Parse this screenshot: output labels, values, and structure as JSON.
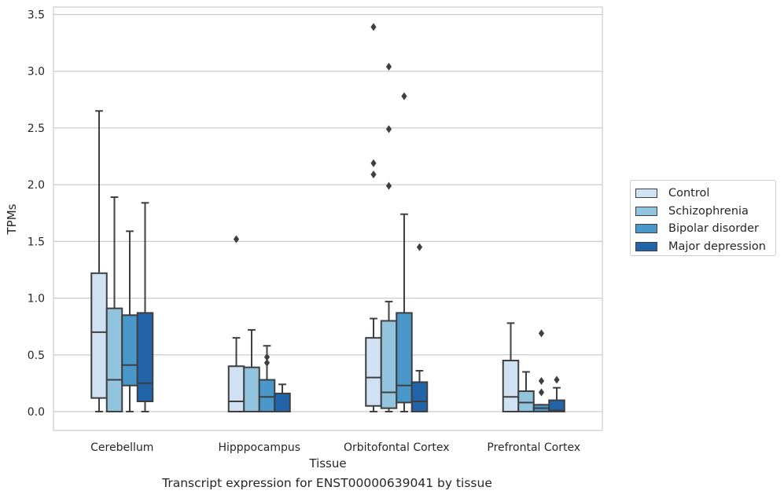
{
  "chart_data": {
    "type": "box",
    "title": "Transcript expression for ENST00000639041 by tissue",
    "xlabel": "Tissue",
    "ylabel": "TPMs",
    "ylim": [
      -0.17,
      3.57
    ],
    "yticks": [
      0.0,
      0.5,
      1.0,
      1.5,
      2.0,
      2.5,
      3.0,
      3.5
    ],
    "ytick_labels": [
      "0.0",
      "0.5",
      "1.0",
      "1.5",
      "2.0",
      "2.5",
      "3.0",
      "3.5"
    ],
    "grid": "horizontal",
    "legend_position": "right",
    "categories": [
      "Cerebellum",
      "Hipppocampus",
      "Orbitofontal Cortex",
      "Prefrontal Cortex"
    ],
    "series": [
      {
        "name": "Control",
        "color": "#cfe1f2",
        "boxes": [
          {
            "whislo": 0.0,
            "q1": 0.12,
            "med": 0.7,
            "q3": 1.22,
            "whishi": 2.65,
            "fliers": []
          },
          {
            "whislo": 0.0,
            "q1": 0.0,
            "med": 0.09,
            "q3": 0.4,
            "whishi": 0.65,
            "fliers": [
              1.52
            ]
          },
          {
            "whislo": 0.0,
            "q1": 0.05,
            "med": 0.3,
            "q3": 0.65,
            "whishi": 0.82,
            "fliers": [
              2.09,
              2.19,
              3.39
            ]
          },
          {
            "whislo": 0.0,
            "q1": 0.0,
            "med": 0.13,
            "q3": 0.45,
            "whishi": 0.78,
            "fliers": []
          }
        ]
      },
      {
        "name": "Schizophrenia",
        "color": "#93c4de",
        "boxes": [
          {
            "whislo": 0.0,
            "q1": 0.0,
            "med": 0.28,
            "q3": 0.91,
            "whishi": 1.89,
            "fliers": []
          },
          {
            "whislo": 0.0,
            "q1": 0.0,
            "med": 0.0,
            "q3": 0.39,
            "whishi": 0.72,
            "fliers": []
          },
          {
            "whislo": 0.0,
            "q1": 0.03,
            "med": 0.17,
            "q3": 0.8,
            "whishi": 0.97,
            "fliers": [
              1.99,
              2.49,
              3.04
            ]
          },
          {
            "whislo": 0.0,
            "q1": 0.0,
            "med": 0.08,
            "q3": 0.18,
            "whishi": 0.35,
            "fliers": []
          }
        ]
      },
      {
        "name": "Bipolar disorder",
        "color": "#4a98c9",
        "boxes": [
          {
            "whislo": 0.0,
            "q1": 0.23,
            "med": 0.41,
            "q3": 0.85,
            "whishi": 1.59,
            "fliers": []
          },
          {
            "whislo": 0.0,
            "q1": 0.0,
            "med": 0.13,
            "q3": 0.28,
            "whishi": 0.58,
            "fliers": [
              0.43,
              0.48
            ]
          },
          {
            "whislo": 0.0,
            "q1": 0.08,
            "med": 0.23,
            "q3": 0.87,
            "whishi": 1.74,
            "fliers": [
              2.78
            ]
          },
          {
            "whislo": 0.0,
            "q1": 0.0,
            "med": 0.03,
            "q3": 0.06,
            "whishi": 0.06,
            "fliers": [
              0.17,
              0.27,
              0.69
            ]
          }
        ]
      },
      {
        "name": "Major depression",
        "color": "#2264aa",
        "boxes": [
          {
            "whislo": 0.0,
            "q1": 0.09,
            "med": 0.25,
            "q3": 0.87,
            "whishi": 1.84,
            "fliers": []
          },
          {
            "whislo": 0.0,
            "q1": 0.0,
            "med": 0.0,
            "q3": 0.16,
            "whishi": 0.24,
            "fliers": []
          },
          {
            "whislo": 0.0,
            "q1": 0.0,
            "med": 0.09,
            "q3": 0.26,
            "whishi": 0.36,
            "fliers": [
              1.45
            ]
          },
          {
            "whislo": 0.0,
            "q1": 0.0,
            "med": 0.01,
            "q3": 0.1,
            "whishi": 0.21,
            "fliers": [
              0.28
            ]
          }
        ]
      }
    ]
  }
}
